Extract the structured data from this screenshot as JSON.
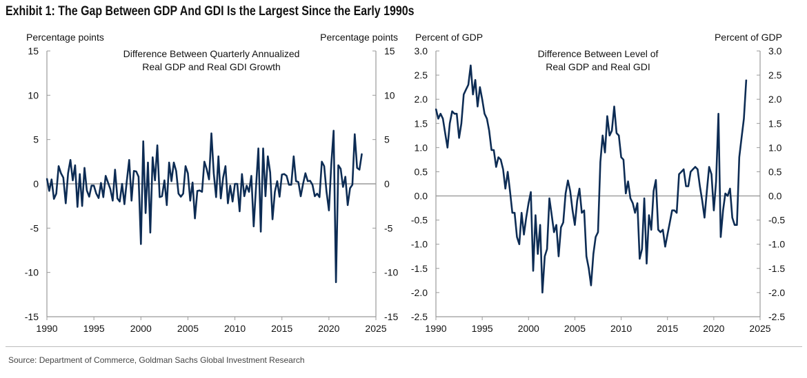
{
  "title": "Exhibit 1: The Gap Between GDP And GDI Is the Largest Since the Early 1990s",
  "source": "Source: Department of Commerce, Goldman Sachs Global Investment Research",
  "line_color": "#0d2c54",
  "chart_data": [
    {
      "type": "line",
      "title": "Difference Between Quarterly Annualized Real GDP and Real GDI Growth",
      "title_lines": [
        "Difference Between Quarterly Annualized",
        "Real GDP and Real GDI Growth"
      ],
      "ylabel_left": "Percentage points",
      "ylabel_right": "Percentage points",
      "xlim": [
        1990,
        2025
      ],
      "ylim": [
        -15,
        15
      ],
      "xticks": [
        1990,
        1995,
        2000,
        2005,
        2010,
        2015,
        2020,
        2025
      ],
      "yticks": [
        -15,
        -10,
        -5,
        0,
        5,
        10,
        15
      ],
      "x_start": 1990.0,
      "x_step": 0.25,
      "values": [
        0.6,
        -0.8,
        0.5,
        -1.7,
        -1.1,
        2.0,
        1.2,
        0.7,
        -2.2,
        1.2,
        2.7,
        0.4,
        2.1,
        -2.6,
        1.1,
        -2.5,
        1.8,
        -0.75,
        -1.45,
        -0.2,
        -0.2,
        -1.1,
        -1.6,
        0.1,
        -1.5,
        0.9,
        0.15,
        -0.6,
        -1.9,
        1.6,
        -1.65,
        -2.0,
        0,
        -2.3,
        0.3,
        2.7,
        -1.9,
        1.45,
        1.4,
        0.8,
        -6.8,
        4.8,
        -3.3,
        2.4,
        -5.5,
        3.0,
        0.4,
        4.35,
        -1.5,
        -1.4,
        0.4,
        -2.4,
        2.4,
        0.3,
        2.4,
        1.45,
        -1.1,
        -1.45,
        -1.1,
        2.0,
        1.2,
        -1.9,
        0.15,
        -3.9,
        -0.8,
        -0.75,
        -0.9,
        2.5,
        1.65,
        0.5,
        5.7,
        1.2,
        -1.5,
        3.1,
        -1.65,
        0.7,
        2.0,
        -2.2,
        -0.2,
        -2.0,
        0,
        0,
        -3.1,
        1.1,
        -1.4,
        -0.2,
        -0.9,
        0.9,
        -4.8,
        -0.35,
        4.0,
        -5.4,
        4.0,
        -1.4,
        3.1,
        1.3,
        -4.0,
        -0.9,
        0.3,
        -1.45,
        1.05,
        1.1,
        0.9,
        -0.1,
        -0.1,
        3.1,
        0.3,
        0.2,
        -1.4,
        0,
        1.2,
        0.3,
        0.35,
        -0.1,
        -1.4,
        -1.1,
        -1.5,
        2.5,
        2.0,
        -0.9,
        -3.0,
        2.2,
        6.0,
        -11.1,
        2.1,
        1.7,
        -0.35,
        0.8,
        -2.4,
        -0.5,
        -0.1,
        5.6,
        1.8,
        1.6,
        3.4
      ]
    },
    {
      "type": "line",
      "title": "Difference Between Level of Real GDP and Real GDI",
      "title_lines": [
        "Difference Between Level of",
        "Real GDP and Real GDI"
      ],
      "ylabel_left": "Percent of GDP",
      "ylabel_right": "Percent of GDP",
      "xlim": [
        1990,
        2025
      ],
      "ylim": [
        -2.5,
        3.0
      ],
      "xticks": [
        1990,
        1995,
        2000,
        2005,
        2010,
        2015,
        2020,
        2025
      ],
      "yticks": [
        -2.5,
        -2.0,
        -1.5,
        -1.0,
        -0.5,
        0.0,
        0.5,
        1.0,
        1.5,
        2.0,
        2.5,
        3.0
      ],
      "x_start": 1990.0,
      "x_step": 0.25,
      "values": [
        1.8,
        1.6,
        1.7,
        1.6,
        1.3,
        1.0,
        1.5,
        1.75,
        1.7,
        1.7,
        1.2,
        1.5,
        2.1,
        2.2,
        2.3,
        2.7,
        2.1,
        2.4,
        1.85,
        2.25,
        2.0,
        1.7,
        1.6,
        1.35,
        0.95,
        0.95,
        0.6,
        0.8,
        0.75,
        0.55,
        0.15,
        0.5,
        0.1,
        -0.35,
        -0.35,
        -0.85,
        -1.0,
        -0.35,
        -0.8,
        -0.45,
        -0.15,
        0.08,
        -1.55,
        -0.4,
        -1.2,
        -0.6,
        -2.0,
        -1.25,
        -1.1,
        -0.05,
        -0.4,
        -0.75,
        -0.6,
        -1.25,
        -0.65,
        -0.55,
        0.05,
        0.32,
        0.1,
        -0.3,
        -0.6,
        -0.1,
        0.15,
        -0.35,
        -0.3,
        -1.25,
        -1.5,
        -1.85,
        -1.2,
        -0.85,
        -0.75,
        0.7,
        1.25,
        0.9,
        1.65,
        1.25,
        1.35,
        1.85,
        1.3,
        1.25,
        0.8,
        0.75,
        0.05,
        0.3,
        -0.05,
        -0.15,
        -0.35,
        -0.15,
        -1.3,
        -1.1,
        -0.05,
        -1.4,
        -0.4,
        -0.7,
        0.1,
        0.33,
        -0.7,
        -0.75,
        -0.7,
        -1.05,
        -0.8,
        -0.55,
        -0.3,
        -0.3,
        -0.35,
        0.45,
        0.5,
        0.55,
        0.2,
        0.2,
        0.5,
        0.55,
        0.6,
        0.55,
        0.2,
        -0.1,
        -0.45,
        0.1,
        0.6,
        0.45,
        -0.3,
        0.3,
        1.7,
        -0.85,
        -0.3,
        0.05,
        0.0,
        0.15,
        -0.45,
        -0.6,
        -0.6,
        0.8,
        1.2,
        1.6,
        2.4
      ]
    }
  ]
}
